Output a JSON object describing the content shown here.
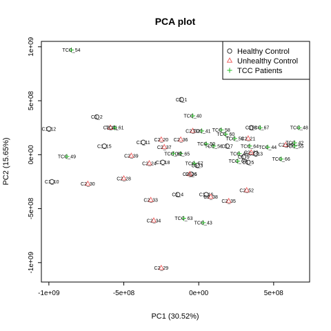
{
  "chart_data": {
    "type": "scatter",
    "title": "PCA plot",
    "xlabel": "PC1 (30.52%)",
    "ylabel": "PC2 (15.65%)",
    "xlim": [
      -1050000000.0,
      740000000.0
    ],
    "ylim": [
      -1180000000.0,
      1050000000.0
    ],
    "x_ticks": [
      {
        "value": -1000000000.0,
        "label": "-1e+09"
      },
      {
        "value": -500000000.0,
        "label": "-5e+08"
      },
      {
        "value": 0,
        "label": "0e+00"
      },
      {
        "value": 500000000.0,
        "label": "5e+08"
      }
    ],
    "y_ticks": [
      {
        "value": -1000000000.0,
        "label": "-1e+09"
      },
      {
        "value": -500000000.0,
        "label": "-5e+08"
      },
      {
        "value": 0,
        "label": "0e+00"
      },
      {
        "value": 500000000.0,
        "label": "5e+08"
      },
      {
        "value": 1000000000.0,
        "label": "1e+09"
      }
    ],
    "legend": {
      "position": "top-right",
      "entries": [
        {
          "label": "Healthy Control",
          "marker": "circle",
          "color": "#333333"
        },
        {
          "label": "Unhealthy Control",
          "marker": "triangle",
          "color": "#ee6666"
        },
        {
          "label": "TCC Patients",
          "marker": "plus",
          "color": "#22bb22"
        }
      ]
    },
    "series": [
      {
        "name": "Healthy Control",
        "marker": "circle",
        "color": "#333333",
        "points": [
          {
            "label": "C1_1",
            "x": -115000000.0,
            "y": 510000000.0
          },
          {
            "label": "C1_2",
            "x": -680000000.0,
            "y": 350000000.0
          },
          {
            "label": "C1_12",
            "x": -1000000000.0,
            "y": 240000000.0
          },
          {
            "label": "C1_15",
            "x": -630000000.0,
            "y": 80000000.0
          },
          {
            "label": "C1_10",
            "x": -980000000.0,
            "y": -250000000.0
          },
          {
            "label": "C1_11",
            "x": -370000000.0,
            "y": 115000000.0
          },
          {
            "label": "C1_18",
            "x": -240000000.0,
            "y": -70000000.0
          },
          {
            "label": "C1_3",
            "x": -10000000.0,
            "y": -100000000.0
          },
          {
            "label": "C1_6",
            "x": -50000000.0,
            "y": -180000000.0
          },
          {
            "label": "C1_4",
            "x": -140000000.0,
            "y": -370000000.0
          },
          {
            "label": "C1_16",
            "x": 50000000.0,
            "y": -370000000.0
          },
          {
            "label": "C1_7",
            "x": 190000000.0,
            "y": 80000000.0
          },
          {
            "label": "C1_9",
            "x": 300000000.0,
            "y": -20000000.0
          },
          {
            "label": "C1_5",
            "x": 330000000.0,
            "y": -70000000.0
          },
          {
            "label": "C1_8",
            "x": 350000000.0,
            "y": 250000000.0
          },
          {
            "label": "C1_13",
            "x": 380000000.0,
            "y": 10000000.0
          }
        ]
      },
      {
        "name": "Unhealthy Control",
        "marker": "triangle",
        "color": "#ee6666",
        "points": [
          {
            "label": "C2_31",
            "x": -590000000.0,
            "y": 250000000.0
          },
          {
            "label": "C2_30",
            "x": -740000000.0,
            "y": -270000000.0
          },
          {
            "label": "C2_39",
            "x": -450000000.0,
            "y": -10000000.0
          },
          {
            "label": "C2_28",
            "x": -500000000.0,
            "y": -220000000.0
          },
          {
            "label": "C2_24",
            "x": -330000000.0,
            "y": -80000000.0
          },
          {
            "label": "C2_20",
            "x": -250000000.0,
            "y": 140000000.0
          },
          {
            "label": "C2_36",
            "x": -120000000.0,
            "y": 140000000.0
          },
          {
            "label": "C2_37",
            "x": -230000000.0,
            "y": 70000000.0
          },
          {
            "label": "C2_32",
            "x": -40000000.0,
            "y": 220000000.0
          },
          {
            "label": "C2_26",
            "x": -60000000.0,
            "y": -180000000.0
          },
          {
            "label": "C2_33",
            "x": -320000000.0,
            "y": -420000000.0
          },
          {
            "label": "C2_34",
            "x": -300000000.0,
            "y": -610000000.0
          },
          {
            "label": "C2_38",
            "x": 80000000.0,
            "y": -390000000.0
          },
          {
            "label": "C2_35",
            "x": 200000000.0,
            "y": -430000000.0
          },
          {
            "label": "C2_29",
            "x": -250000000.0,
            "y": -1050000000.0
          },
          {
            "label": "C2_52",
            "x": 320000000.0,
            "y": -330000000.0
          },
          {
            "label": "C2_21",
            "x": 330000000.0,
            "y": 150000000.0
          },
          {
            "label": "C2_22",
            "x": 350000000.0,
            "y": 20000000.0
          },
          {
            "label": "C2_23",
            "x": 580000000.0,
            "y": 90000000.0
          }
        ]
      },
      {
        "name": "TCC Patients",
        "marker": "plus",
        "color": "#22bb22",
        "points": [
          {
            "label": "TCC_54",
            "x": -850000000.0,
            "y": 970000000.0
          },
          {
            "label": "TCC_61",
            "x": -560000000.0,
            "y": 250000000.0
          },
          {
            "label": "TCC_49",
            "x": -880000000.0,
            "y": -17000000.0
          },
          {
            "label": "TCC_40",
            "x": -40000000.0,
            "y": 360000000.0
          },
          {
            "label": "TCC_41",
            "x": 20000000.0,
            "y": 220000000.0
          },
          {
            "label": "TCC_58",
            "x": 150000000.0,
            "y": 230000000.0
          },
          {
            "label": "TCC_60",
            "x": 180000000.0,
            "y": 190000000.0
          },
          {
            "label": "TCC_67",
            "x": 410000000.0,
            "y": 250000000.0
          },
          {
            "label": "TCC_48",
            "x": 670000000.0,
            "y": 250000000.0
          },
          {
            "label": "TCC_59",
            "x": 240000000.0,
            "y": 150000000.0
          },
          {
            "label": "TCC_42",
            "x": 640000000.0,
            "y": 110000000.0
          },
          {
            "label": "TCC_55",
            "x": 640000000.0,
            "y": 80000000.0
          },
          {
            "label": "TCC_44",
            "x": 460000000.0,
            "y": 70000000.0
          },
          {
            "label": "TCC_64",
            "x": 340000000.0,
            "y": 80000000.0
          },
          {
            "label": "TCC_56",
            "x": 100000000.0,
            "y": 80000000.0
          },
          {
            "label": "TCC_50",
            "x": 50000000.0,
            "y": 100000000.0
          },
          {
            "label": "TCC_65",
            "x": -120000000.0,
            "y": 10000000.0
          },
          {
            "label": "TCC_62",
            "x": -170000000.0,
            "y": 10000000.0
          },
          {
            "label": "TCC_57",
            "x": -30000000.0,
            "y": -80000000.0
          },
          {
            "label": "TCC_45",
            "x": 270000000.0,
            "y": 10000000.0
          },
          {
            "label": "TCC_63",
            "x": 260000000.0,
            "y": -60000000.0
          },
          {
            "label": "TCC_66",
            "x": 550000000.0,
            "y": -40000000.0
          },
          {
            "label": "TCC_63",
            "x": -100000000.0,
            "y": -590000000.0
          },
          {
            "label": "TCC_43",
            "x": 30000000.0,
            "y": -630000000.0
          }
        ]
      }
    ]
  }
}
